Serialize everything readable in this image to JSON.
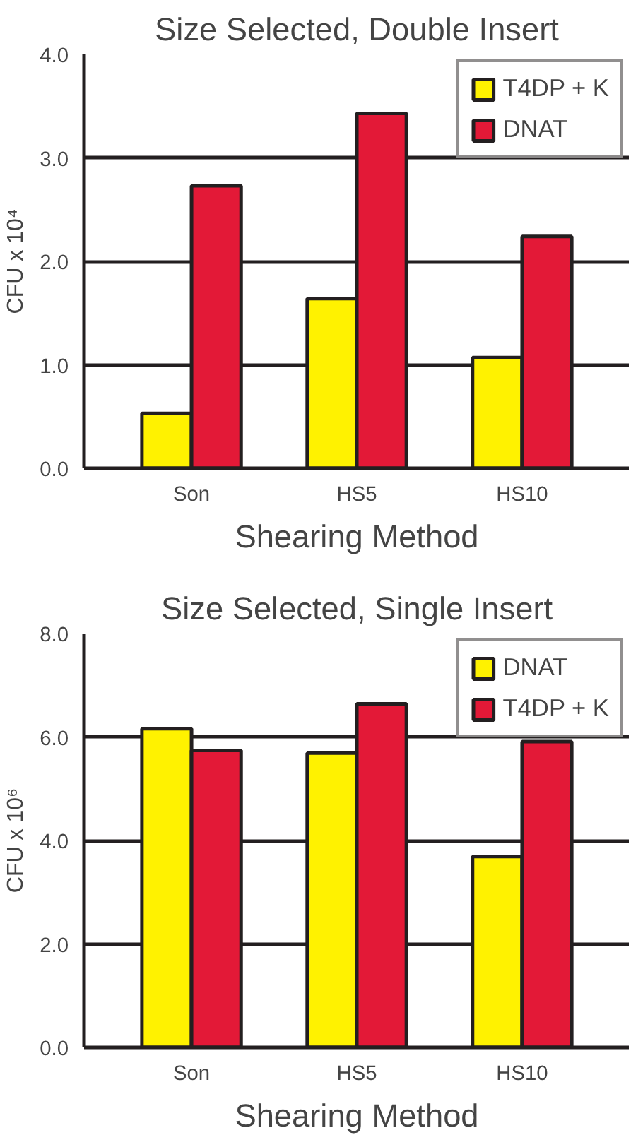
{
  "chart_data": [
    {
      "type": "bar",
      "title": "Size Selected, Double Insert",
      "xlabel": "Shearing Method",
      "ylabel": "CFU x 10⁴",
      "categories": [
        "Son",
        "HS5",
        "HS10"
      ],
      "series": [
        {
          "name": "T4DP + K",
          "color": "#fff200",
          "values": [
            0.53,
            1.64,
            1.07
          ]
        },
        {
          "name": "DNAT",
          "color": "#e31937",
          "values": [
            2.73,
            3.43,
            2.24
          ]
        }
      ],
      "ylim": [
        0,
        4
      ],
      "yticks": [
        {
          "value": 0,
          "label": "0.0"
        },
        {
          "value": 1,
          "label": "1.0"
        },
        {
          "value": 2,
          "label": "2.0"
        },
        {
          "value": 3,
          "label": "3.0"
        },
        {
          "value": 4,
          "label": "4.0"
        }
      ],
      "grid": "y",
      "legend": "top right"
    },
    {
      "type": "bar",
      "title": "Size Selected, Single Insert",
      "xlabel": "Shearing Method",
      "ylabel": "CFU x 10⁶",
      "categories": [
        "Son",
        "HS5",
        "HS10"
      ],
      "series": [
        {
          "name": "DNAT",
          "color": "#fff200",
          "values": [
            6.16,
            5.69,
            3.69
          ]
        },
        {
          "name": "T4DP + K",
          "color": "#e31937",
          "values": [
            5.74,
            6.64,
            5.91
          ]
        }
      ],
      "ylim": [
        0,
        8
      ],
      "yticks": [
        {
          "value": 0,
          "label": "0.0"
        },
        {
          "value": 2,
          "label": "2.0"
        },
        {
          "value": 4,
          "label": "4.0"
        },
        {
          "value": 6,
          "label": "6.0"
        },
        {
          "value": 8,
          "label": "8.0"
        }
      ],
      "grid": "y",
      "legend": "top right"
    }
  ]
}
